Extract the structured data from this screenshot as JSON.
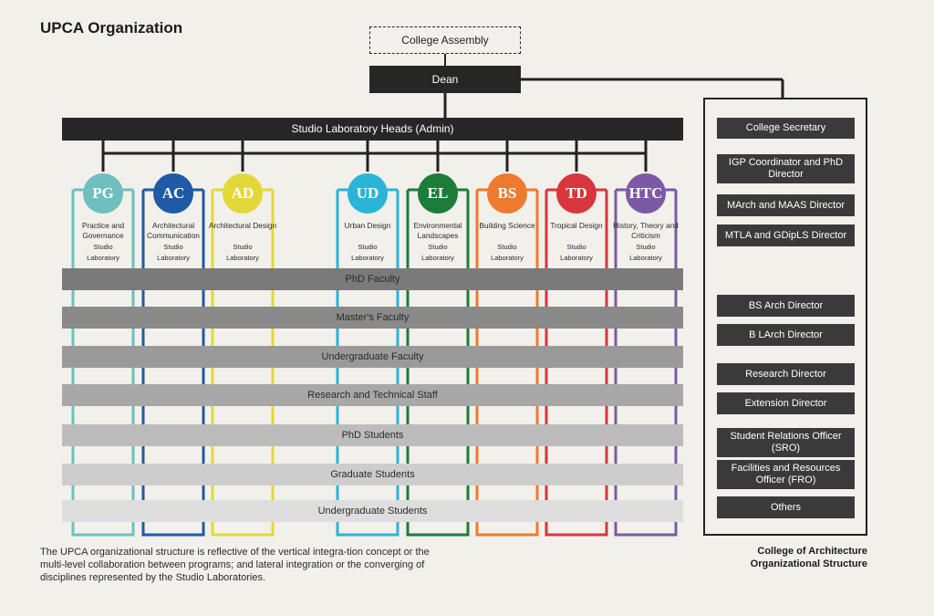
{
  "title": "UPCA Organization",
  "top": {
    "assembly": "College Assembly",
    "dean": "Dean",
    "heads": "Studio Laboratory Heads (Admin)"
  },
  "studios": [
    {
      "abbr": "PG",
      "name": "Practice and Governance",
      "color": "#6fbfbf"
    },
    {
      "abbr": "AC",
      "name": "Architectural Communication",
      "color": "#1f5aa6"
    },
    {
      "abbr": "AD",
      "name": "Architectural Design",
      "color": "#e3d83a"
    },
    {
      "abbr": "UD",
      "name": "Urban Design",
      "color": "#2ab5d8"
    },
    {
      "abbr": "EL",
      "name": "Environmental Landscapes",
      "color": "#1c7d3a"
    },
    {
      "abbr": "BS",
      "name": "Building Science",
      "color": "#ef7a2f"
    },
    {
      "abbr": "TD",
      "name": "Tropical Design",
      "color": "#d7373c"
    },
    {
      "abbr": "HTC",
      "name": "History, Theory and Criticism",
      "color": "#7c59a6"
    }
  ],
  "studio_sub": "Studio Laboratory",
  "bars": [
    {
      "label": "PhD Faculty",
      "color": "#7a7a7a"
    },
    {
      "label": "Master's Faculty",
      "color": "#8a8a8a"
    },
    {
      "label": "Undergraduate Faculty",
      "color": "#9a9a9a"
    },
    {
      "label": "Research and Technical Staff",
      "color": "#a8a8a8"
    },
    {
      "label": "PhD Students",
      "color": "#bcbcbc"
    },
    {
      "label": "Graduate Students",
      "color": "#cdcdcd"
    },
    {
      "label": "Undergraduate Students",
      "color": "#dedede"
    }
  ],
  "right_boxes": [
    "College Secretary",
    "IGP Coordinator and PhD Director",
    "MArch and MAAS Director",
    "MTLA and GDipLS Director",
    "BS Arch Director",
    "B LArch Director",
    "Research Director",
    "Extension Director",
    "Student Relations Officer (SRO)",
    "Facilities and Resources Officer (FRO)",
    "Others"
  ],
  "caption": "College of Architecture Organizational Structure",
  "note": "The UPCA organizational structure is reflective of the vertical integra-tion concept or the multi-level collaboration between programs; and lateral integration or the converging of disciplines represented by the Studio Laboratories."
}
